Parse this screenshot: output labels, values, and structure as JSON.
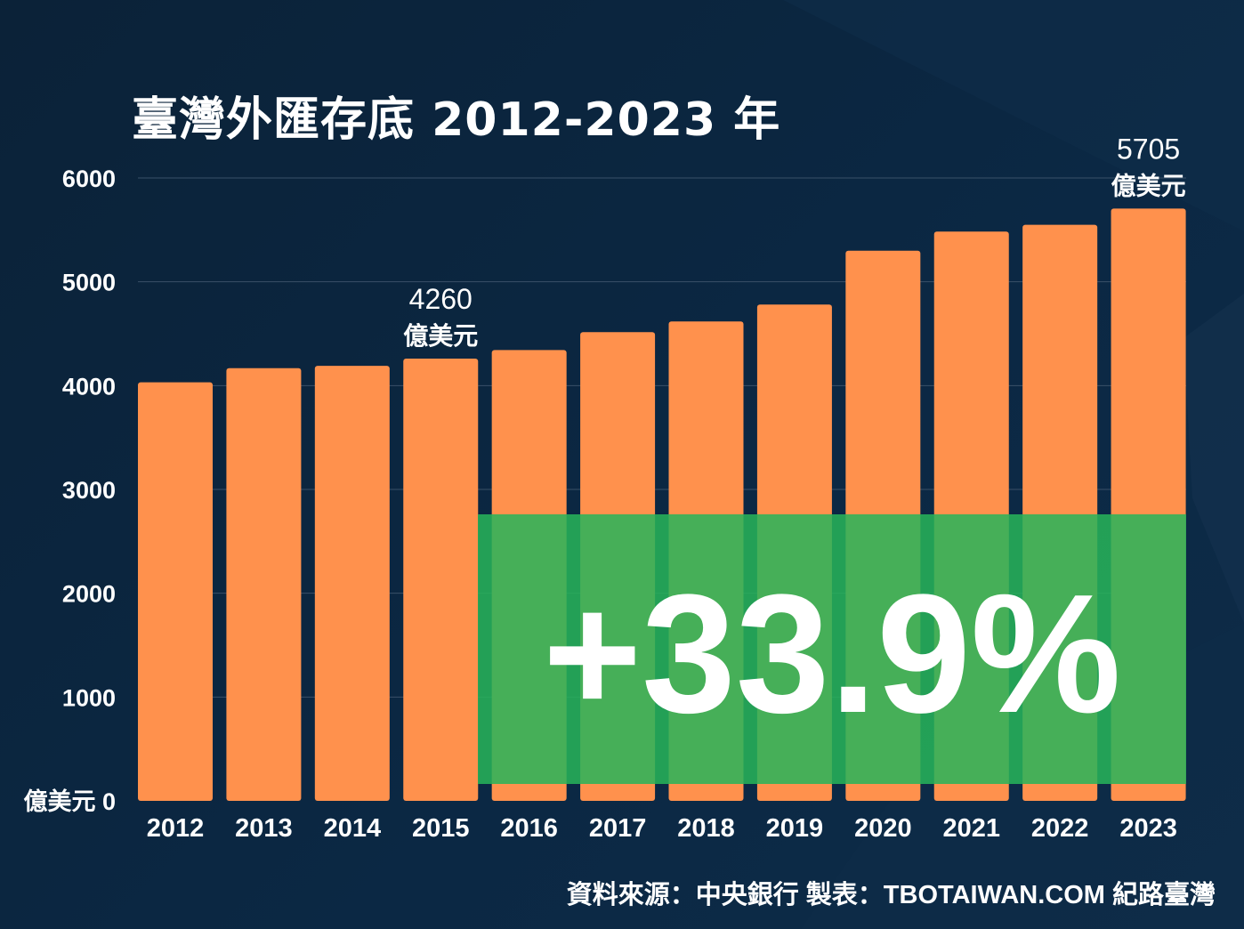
{
  "chart_data": {
    "type": "bar",
    "title": "臺灣外匯存底 2012-2023 年",
    "categories": [
      "2012",
      "2013",
      "2014",
      "2015",
      "2016",
      "2017",
      "2018",
      "2019",
      "2020",
      "2021",
      "2022",
      "2023"
    ],
    "values": [
      4032,
      4168,
      4190,
      4260,
      4342,
      4515,
      4618,
      4781,
      5299,
      5484,
      5549,
      5705
    ],
    "ylim": [
      0,
      6000
    ],
    "yticks": [
      "億美元 0",
      "1000",
      "2000",
      "3000",
      "4000",
      "5000",
      "6000"
    ],
    "grid": true,
    "bar_color": "#ff914d",
    "annotations": [
      {
        "category": "2015",
        "value": "4260",
        "unit": "億美元"
      },
      {
        "category": "2023",
        "value": "5705",
        "unit": "億美元"
      }
    ],
    "highlight": {
      "text": "+33.9%",
      "color": "#52b862"
    }
  },
  "footer": {
    "source": "資料來源：中央銀行  製表：TBOTAIWAN.COM 紀路臺灣"
  }
}
